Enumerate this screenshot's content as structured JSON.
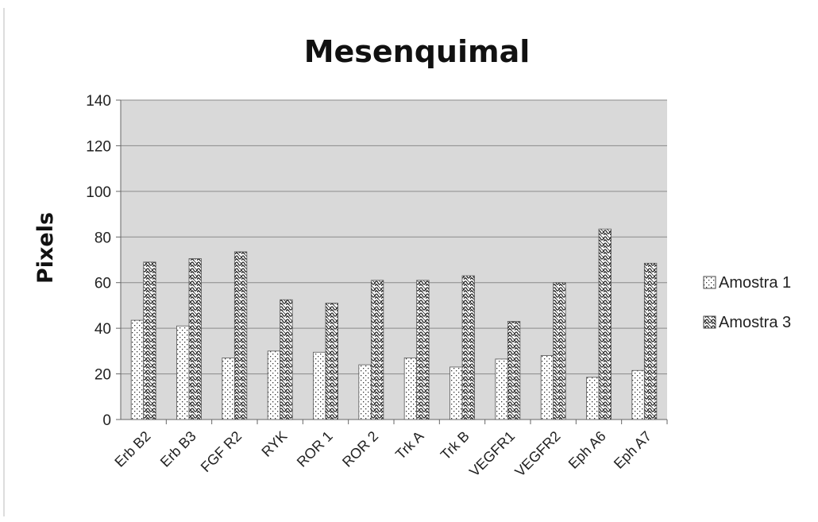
{
  "chart_data": {
    "type": "bar",
    "title": "Mesenquimal",
    "xlabel": "",
    "ylabel": "Pixels",
    "ylim": [
      0,
      140
    ],
    "yticks": [
      0,
      20,
      40,
      60,
      80,
      100,
      120,
      140
    ],
    "grid": true,
    "legend_position": "right",
    "categories": [
      "Erb B2",
      "Erb B3",
      "FGF R2",
      "RYK",
      "ROR 1",
      "ROR 2",
      "Trk A",
      "Trk B",
      "VEGFR1",
      "VEGFR2",
      "Eph A6",
      "Eph A7"
    ],
    "series": [
      {
        "name": "Amostra 1",
        "values": [
          43.5,
          41,
          27,
          30,
          29.5,
          24,
          27,
          23,
          26.5,
          28,
          18.5,
          21.5
        ]
      },
      {
        "name": "Amostra 3",
        "values": [
          69,
          70.5,
          73.5,
          52.5,
          51,
          61,
          61,
          63,
          43,
          60,
          83.5,
          68.5
        ]
      }
    ],
    "plot_background": "#d9d9d9",
    "series_colors": [
      "#ffffff",
      "#ffffff"
    ]
  }
}
